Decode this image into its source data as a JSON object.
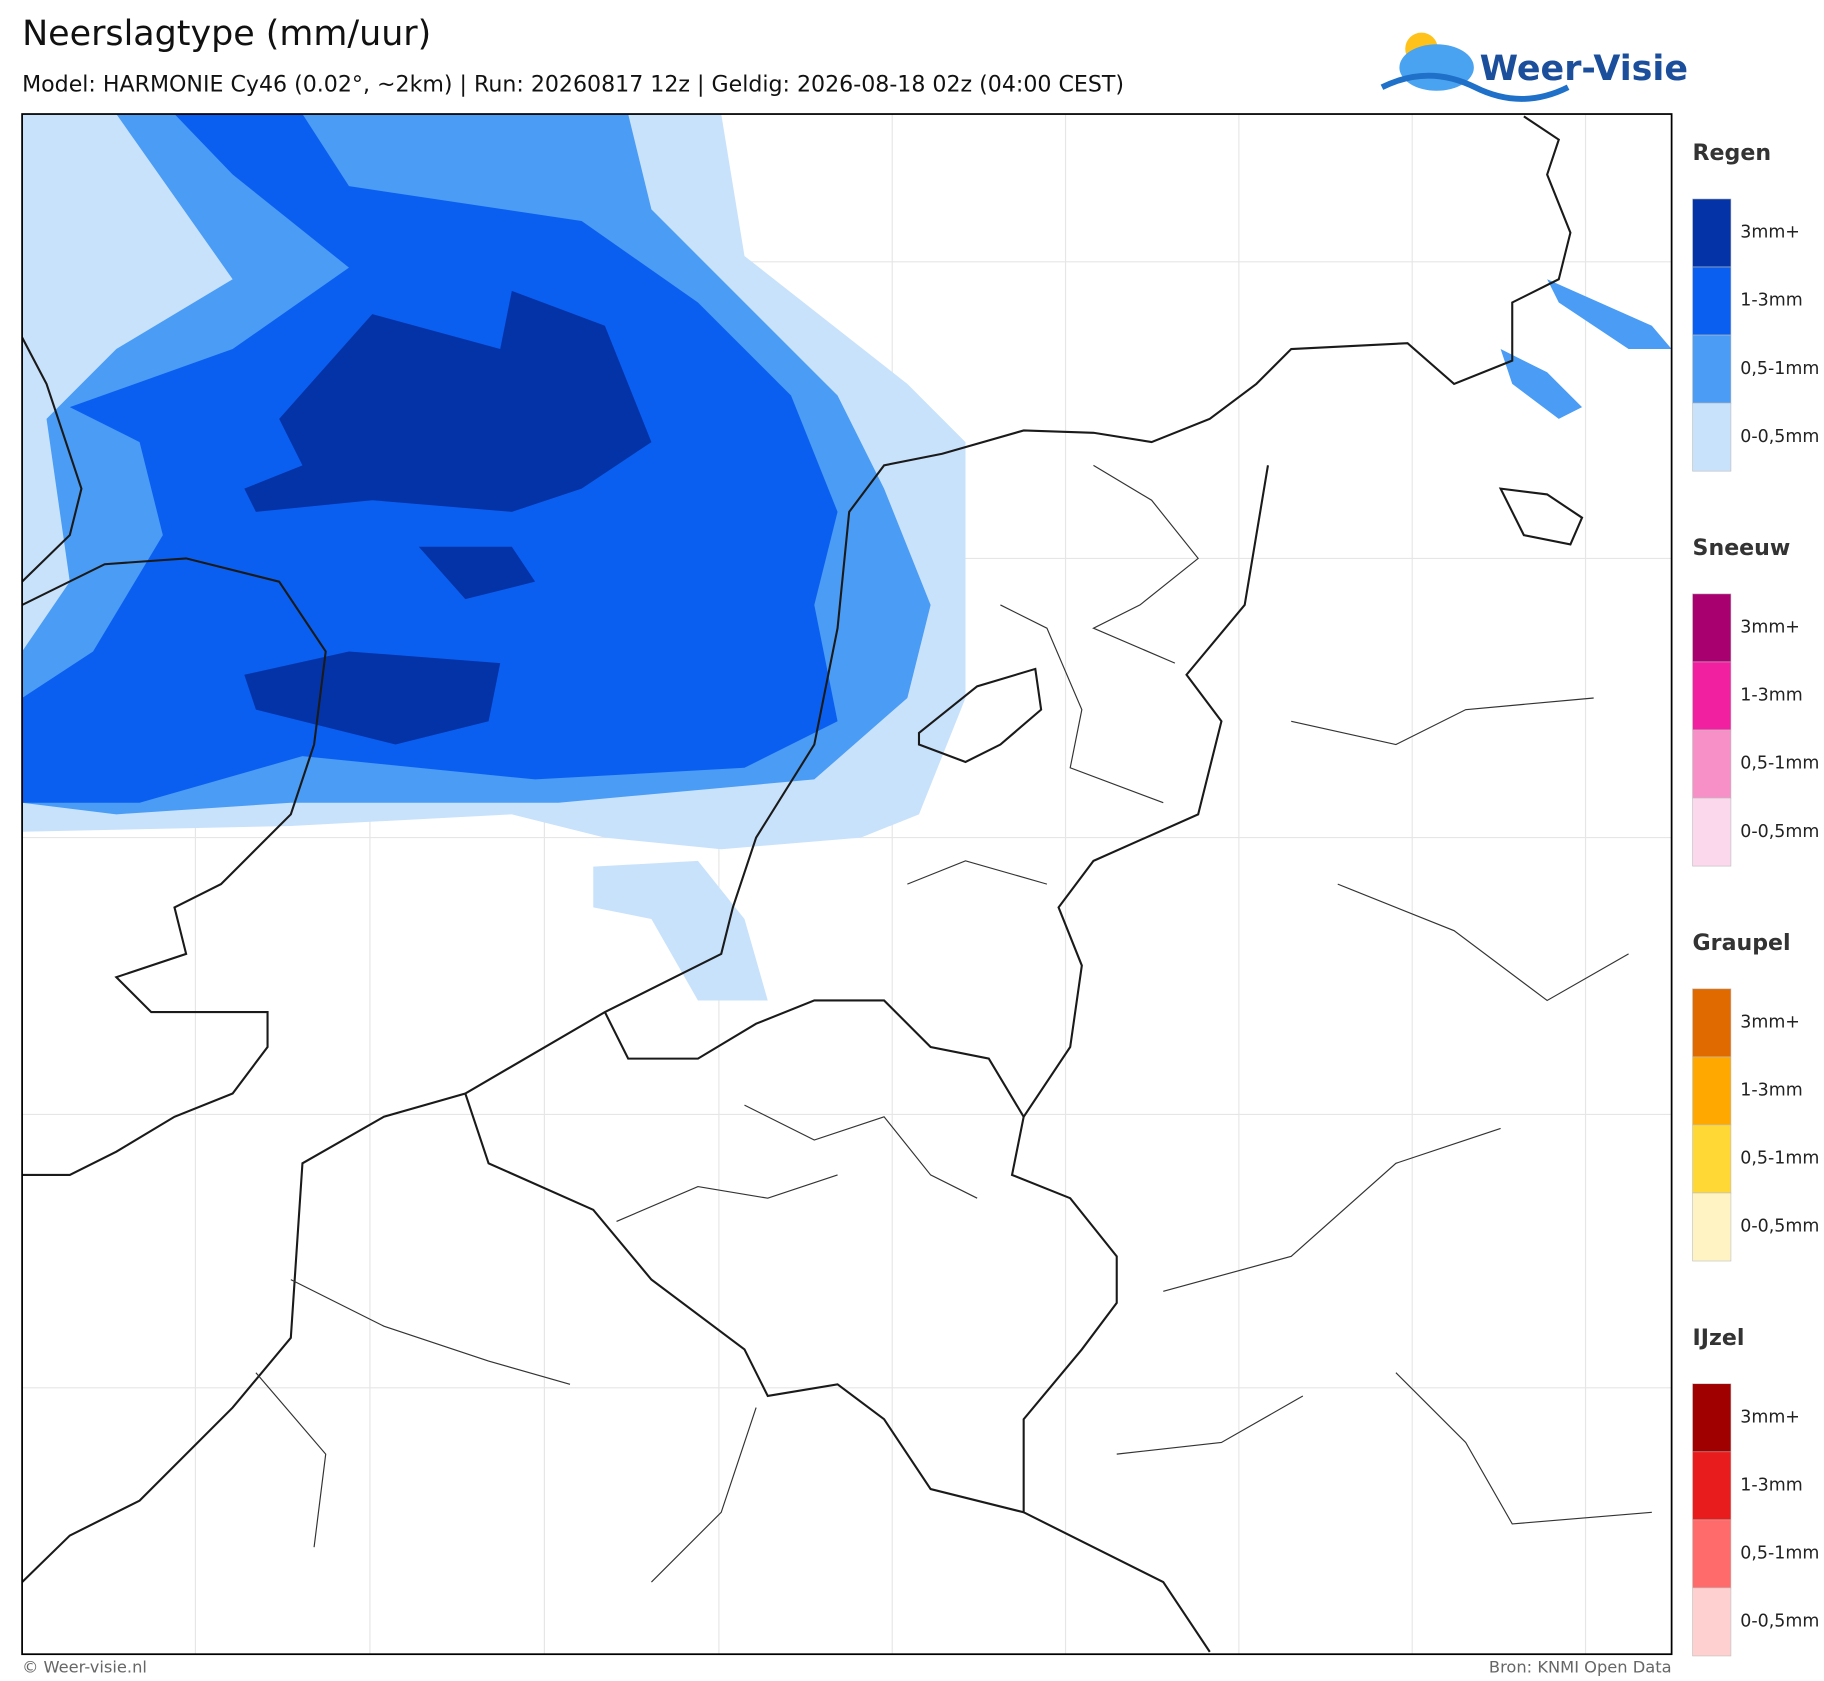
{
  "header": {
    "title": "Neerslagtype (mm/uur)",
    "subtitle": "Model: HARMONIE Cy46 (0.02°, ~2km)  |  Run: 20260817 12z  |  Geldig: 2026-08-18 02z (04:00 CEST)"
  },
  "logo": {
    "text": "Weer-Visie"
  },
  "legend": {
    "groups": [
      {
        "title": "Regen",
        "items": [
          {
            "label": "3mm+",
            "color": "#0433a8"
          },
          {
            "label": "1-3mm",
            "color": "#0b5ff0"
          },
          {
            "label": "0,5-1mm",
            "color": "#4a9cf5"
          },
          {
            "label": "0-0,5mm",
            "color": "#c8e2fc"
          }
        ]
      },
      {
        "title": "Sneeuw",
        "items": [
          {
            "label": "3mm+",
            "color": "#a8006e"
          },
          {
            "label": "1-3mm",
            "color": "#f020a0"
          },
          {
            "label": "0,5-1mm",
            "color": "#f890c8"
          },
          {
            "label": "0-0,5mm",
            "color": "#fcd8ec"
          }
        ]
      },
      {
        "title": "Graupel",
        "items": [
          {
            "label": "3mm+",
            "color": "#e06a00"
          },
          {
            "label": "1-3mm",
            "color": "#ffa800"
          },
          {
            "label": "0,5-1mm",
            "color": "#ffd835"
          },
          {
            "label": "0-0,5mm",
            "color": "#fff3c4"
          }
        ]
      },
      {
        "title": "IJzel",
        "items": [
          {
            "label": "3mm+",
            "color": "#a00000"
          },
          {
            "label": "1-3mm",
            "color": "#e81c1c"
          },
          {
            "label": "0,5-1mm",
            "color": "#ff6b6b"
          },
          {
            "label": "0-0,5mm",
            "color": "#ffd0d0"
          }
        ]
      }
    ]
  },
  "footer": {
    "left": "© Weer-visie.nl",
    "right": "Bron: KNMI Open Data"
  }
}
